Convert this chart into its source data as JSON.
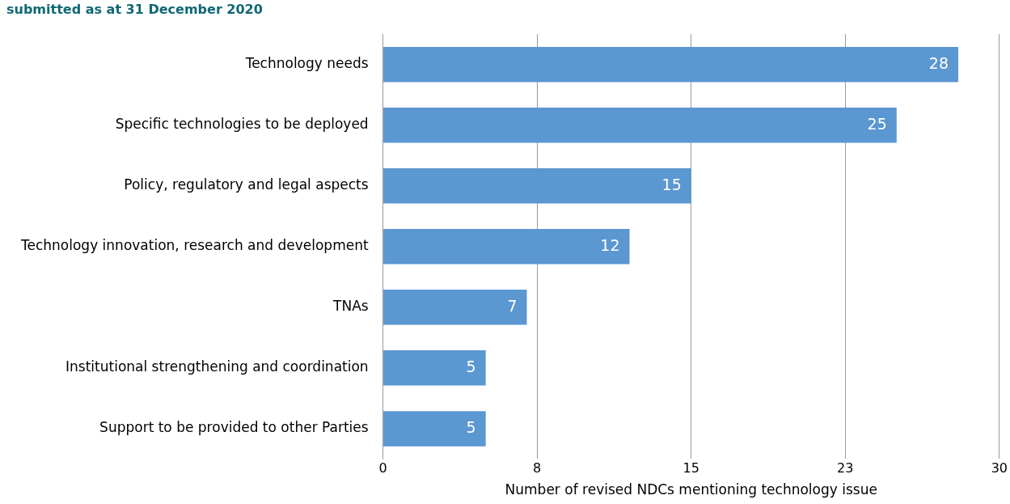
{
  "chart_data": {
    "type": "bar",
    "orientation": "horizontal",
    "title": "submitted as at 31 December 2020",
    "xlabel": "Number of revised NDCs mentioning technology issue",
    "categories": [
      "Technology needs",
      "Specific technologies to be deployed",
      "Policy, regulatory and legal aspects",
      "Technology innovation, research and development",
      "TNAs",
      "Institutional strengthening and coordination",
      "Support to be provided to other Parties"
    ],
    "values": [
      28,
      25,
      15,
      12,
      7,
      5,
      5
    ],
    "color": "#5b97d0",
    "data_labels": true,
    "xlim": [
      0,
      30
    ],
    "xticks": [
      0,
      {
        "value": 7.5,
        "label": "8"
      },
      15,
      {
        "value": 22.5,
        "label": "23"
      },
      30
    ],
    "grid": "x",
    "legend": false
  }
}
